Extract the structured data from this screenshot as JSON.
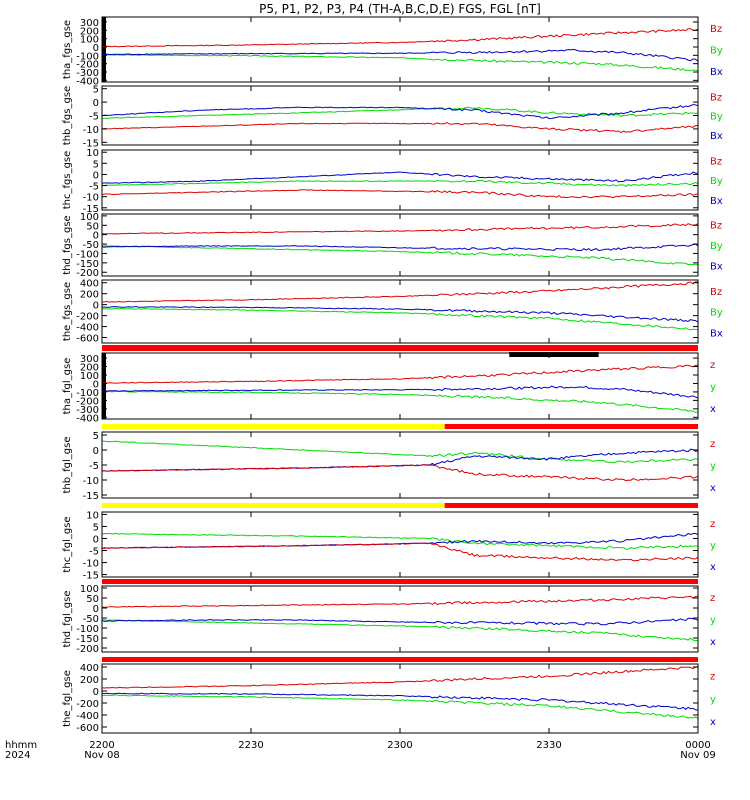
{
  "chart_data": {
    "type": "line",
    "title": "P5, P1, P2, P3, P4 (TH-A,B,C,D,E) FGS, FGL [nT]",
    "x_axis": {
      "label_row1": "hhmm",
      "label_row2": "2024",
      "ticks": [
        {
          "t": "2200",
          "d": "Nov 08"
        },
        {
          "t": "2230",
          "d": ""
        },
        {
          "t": "2300",
          "d": ""
        },
        {
          "t": "2330",
          "d": ""
        },
        {
          "t": "0000",
          "d": "Nov 09"
        }
      ],
      "range_minutes": [
        0,
        120
      ]
    },
    "panels": [
      {
        "ylabel": "tha_fgs_gse",
        "ylim": [
          -420,
          360
        ],
        "yticks": [
          "300",
          "200",
          "100",
          "0",
          "-100",
          "-200",
          "-300",
          "-400"
        ],
        "yvals": [
          300,
          200,
          100,
          0,
          -100,
          -200,
          -300,
          -400
        ],
        "legend": [
          "Bz",
          "By",
          "Bx"
        ],
        "series": {
          "x": [
            [
              0,
              -90
            ],
            [
              10,
              -85
            ],
            [
              30,
              -80
            ],
            [
              60,
              -75
            ],
            [
              80,
              -60
            ],
            [
              95,
              -40
            ],
            [
              105,
              -70
            ],
            [
              120,
              -160
            ]
          ],
          "y": [
            [
              0,
              -95
            ],
            [
              30,
              -105
            ],
            [
              60,
              -130
            ],
            [
              80,
              -170
            ],
            [
              100,
              -200
            ],
            [
              120,
              -280
            ]
          ],
          "z": [
            [
              0,
              5
            ],
            [
              30,
              25
            ],
            [
              60,
              55
            ],
            [
              80,
              100
            ],
            [
              100,
              160
            ],
            [
              120,
              210
            ]
          ]
        }
      },
      {
        "ylabel": "thb_fgs_gse",
        "ylim": [
          -16,
          6
        ],
        "yticks": [
          "5",
          "0",
          "-5",
          "-10",
          "-15"
        ],
        "yvals": [
          5,
          0,
          -5,
          -10,
          -15
        ],
        "legend": [
          "Bz",
          "By",
          "Bx"
        ],
        "series": {
          "x": [
            [
              0,
              -5
            ],
            [
              20,
              -3
            ],
            [
              40,
              -2
            ],
            [
              60,
              -2
            ],
            [
              75,
              -3
            ],
            [
              90,
              -6
            ],
            [
              105,
              -4
            ],
            [
              120,
              -1
            ]
          ],
          "y": [
            [
              0,
              -6
            ],
            [
              20,
              -5
            ],
            [
              40,
              -4
            ],
            [
              75,
              -2
            ],
            [
              90,
              -4
            ],
            [
              105,
              -5
            ],
            [
              120,
              -4
            ]
          ],
          "z": [
            [
              0,
              -10
            ],
            [
              20,
              -9
            ],
            [
              40,
              -8
            ],
            [
              75,
              -8
            ],
            [
              90,
              -10
            ],
            [
              105,
              -11
            ],
            [
              120,
              -9
            ]
          ]
        }
      },
      {
        "ylabel": "thc_fgs_gse",
        "ylim": [
          -16,
          11
        ],
        "yticks": [
          "10",
          "5",
          "0",
          "-5",
          "-10",
          "-15"
        ],
        "yvals": [
          10,
          5,
          0,
          -5,
          -10,
          -15
        ],
        "legend": [
          "Bz",
          "By",
          "Bx"
        ],
        "series": {
          "x": [
            [
              0,
              -4
            ],
            [
              20,
              -3
            ],
            [
              40,
              -1
            ],
            [
              60,
              1
            ],
            [
              75,
              -1
            ],
            [
              90,
              -2
            ],
            [
              105,
              -3
            ],
            [
              120,
              1
            ]
          ],
          "y": [
            [
              0,
              -5
            ],
            [
              20,
              -4
            ],
            [
              40,
              -3
            ],
            [
              75,
              -3
            ],
            [
              90,
              -4
            ],
            [
              105,
              -5
            ],
            [
              120,
              -4
            ]
          ],
          "z": [
            [
              0,
              -9
            ],
            [
              20,
              -8
            ],
            [
              40,
              -7
            ],
            [
              75,
              -8
            ],
            [
              90,
              -10
            ],
            [
              105,
              -10
            ],
            [
              120,
              -9
            ]
          ]
        }
      },
      {
        "ylabel": "thd_fgs_gse",
        "ylim": [
          -220,
          110
        ],
        "yticks": [
          "100",
          "50",
          "0",
          "-50",
          "-100",
          "-150",
          "-200"
        ],
        "yvals": [
          100,
          50,
          0,
          -50,
          -100,
          -150,
          -200
        ],
        "legend": [
          "Bz",
          "By",
          "Bx"
        ],
        "series": {
          "x": [
            [
              0,
              -65
            ],
            [
              20,
              -60
            ],
            [
              40,
              -60
            ],
            [
              60,
              -70
            ],
            [
              80,
              -75
            ],
            [
              100,
              -80
            ],
            [
              120,
              -55
            ]
          ],
          "y": [
            [
              0,
              -60
            ],
            [
              20,
              -70
            ],
            [
              40,
              -80
            ],
            [
              60,
              -90
            ],
            [
              80,
              -105
            ],
            [
              100,
              -125
            ],
            [
              120,
              -160
            ]
          ],
          "z": [
            [
              0,
              5
            ],
            [
              20,
              10
            ],
            [
              40,
              15
            ],
            [
              60,
              20
            ],
            [
              80,
              30
            ],
            [
              100,
              40
            ],
            [
              120,
              55
            ]
          ]
        }
      },
      {
        "ylabel": "the_fgs_gse",
        "ylim": [
          -700,
          450
        ],
        "yticks": [
          "400",
          "200",
          "0",
          "-200",
          "-400",
          "-600"
        ],
        "yvals": [
          400,
          200,
          0,
          -200,
          -400,
          -600
        ],
        "legend": [
          "Bz",
          "By",
          "Bx"
        ],
        "series": {
          "x": [
            [
              0,
              -40
            ],
            [
              30,
              -50
            ],
            [
              60,
              -80
            ],
            [
              90,
              -150
            ],
            [
              120,
              -300
            ]
          ],
          "y": [
            [
              0,
              -70
            ],
            [
              30,
              -100
            ],
            [
              60,
              -150
            ],
            [
              90,
              -250
            ],
            [
              120,
              -450
            ]
          ],
          "z": [
            [
              0,
              50
            ],
            [
              30,
              90
            ],
            [
              60,
              150
            ],
            [
              90,
              250
            ],
            [
              120,
              400
            ]
          ]
        }
      },
      {
        "ylabel": "tha_fgl_gse",
        "ylim": [
          -420,
          360
        ],
        "yticks": [
          "300",
          "200",
          "100",
          "0",
          "-100",
          "-200",
          "-300",
          "-400"
        ],
        "yvals": [
          300,
          200,
          100,
          0,
          -100,
          -200,
          -300,
          -400
        ],
        "legend": [
          "z",
          "y",
          "x"
        ],
        "series": {
          "x": [
            [
              0,
              -90
            ],
            [
              30,
              -80
            ],
            [
              60,
              -75
            ],
            [
              80,
              -60
            ],
            [
              95,
              -40
            ],
            [
              105,
              -70
            ],
            [
              120,
              -160
            ]
          ],
          "y": [
            [
              0,
              -95
            ],
            [
              30,
              -105
            ],
            [
              60,
              -130
            ],
            [
              80,
              -170
            ],
            [
              100,
              -220
            ],
            [
              120,
              -330
            ]
          ],
          "z": [
            [
              0,
              5
            ],
            [
              30,
              25
            ],
            [
              60,
              55
            ],
            [
              80,
              100
            ],
            [
              100,
              160
            ],
            [
              120,
              210
            ]
          ]
        }
      },
      {
        "ylabel": "thb_fgl_gse",
        "ylim": [
          -16,
          6
        ],
        "yticks": [
          "5",
          "0",
          "-5",
          "-10",
          "-15"
        ],
        "yvals": [
          5,
          0,
          -5,
          -10,
          -15
        ],
        "legend": [
          "z",
          "y",
          "x"
        ],
        "series": {
          "x": [
            [
              0,
              -7
            ],
            [
              40,
              -6
            ],
            [
              66,
              -5
            ],
            [
              75,
              -2
            ],
            [
              90,
              -3
            ],
            [
              105,
              -1
            ],
            [
              120,
              0
            ]
          ],
          "y": [
            [
              0,
              3
            ],
            [
              40,
              0
            ],
            [
              66,
              -2
            ],
            [
              75,
              -1
            ],
            [
              90,
              -3
            ],
            [
              105,
              -4
            ],
            [
              120,
              -3
            ]
          ],
          "z": [
            [
              0,
              -7
            ],
            [
              40,
              -6
            ],
            [
              66,
              -5
            ],
            [
              75,
              -8
            ],
            [
              90,
              -9
            ],
            [
              105,
              -10
            ],
            [
              120,
              -9
            ]
          ]
        }
      },
      {
        "ylabel": "thc_fgl_gse",
        "ylim": [
          -16,
          11
        ],
        "yticks": [
          "10",
          "5",
          "0",
          "-5",
          "-10",
          "-15"
        ],
        "yvals": [
          10,
          5,
          0,
          -5,
          -10,
          -15
        ],
        "legend": [
          "z",
          "y",
          "x"
        ],
        "series": {
          "x": [
            [
              0,
              -4
            ],
            [
              40,
              -3
            ],
            [
              66,
              -2
            ],
            [
              75,
              -1
            ],
            [
              90,
              -2
            ],
            [
              105,
              -1
            ],
            [
              120,
              2
            ]
          ],
          "y": [
            [
              0,
              2
            ],
            [
              40,
              1
            ],
            [
              66,
              0
            ],
            [
              75,
              -2
            ],
            [
              90,
              -3
            ],
            [
              105,
              -4
            ],
            [
              120,
              -3
            ]
          ],
          "z": [
            [
              0,
              -4
            ],
            [
              40,
              -3
            ],
            [
              66,
              -2
            ],
            [
              75,
              -7
            ],
            [
              90,
              -8
            ],
            [
              105,
              -9
            ],
            [
              120,
              -8
            ]
          ]
        }
      },
      {
        "ylabel": "thd_fgl_gse",
        "ylim": [
          -220,
          110
        ],
        "yticks": [
          "100",
          "50",
          "0",
          "-50",
          "-100",
          "-150",
          "-200"
        ],
        "yvals": [
          100,
          50,
          0,
          -50,
          -100,
          -150,
          -200
        ],
        "legend": [
          "z",
          "y",
          "x"
        ],
        "series": {
          "x": [
            [
              0,
              -65
            ],
            [
              20,
              -60
            ],
            [
              40,
              -60
            ],
            [
              60,
              -70
            ],
            [
              80,
              -75
            ],
            [
              100,
              -80
            ],
            [
              120,
              -55
            ]
          ],
          "y": [
            [
              0,
              -60
            ],
            [
              20,
              -70
            ],
            [
              40,
              -80
            ],
            [
              60,
              -90
            ],
            [
              80,
              -105
            ],
            [
              100,
              -125
            ],
            [
              120,
              -160
            ]
          ],
          "z": [
            [
              0,
              5
            ],
            [
              20,
              10
            ],
            [
              40,
              15
            ],
            [
              60,
              20
            ],
            [
              80,
              30
            ],
            [
              100,
              40
            ],
            [
              120,
              55
            ]
          ]
        }
      },
      {
        "ylabel": "the_fgl_gse",
        "ylim": [
          -700,
          450
        ],
        "yticks": [
          "400",
          "200",
          "0",
          "-200",
          "-400",
          "-600"
        ],
        "yvals": [
          400,
          200,
          0,
          -200,
          -400,
          -600
        ],
        "legend": [
          "z",
          "y",
          "x"
        ],
        "series": {
          "x": [
            [
              0,
              -40
            ],
            [
              30,
              -50
            ],
            [
              60,
              -80
            ],
            [
              90,
              -150
            ],
            [
              120,
              -300
            ]
          ],
          "y": [
            [
              0,
              -70
            ],
            [
              30,
              -100
            ],
            [
              60,
              -150
            ],
            [
              90,
              -250
            ],
            [
              120,
              -450
            ]
          ],
          "z": [
            [
              0,
              50
            ],
            [
              30,
              90
            ],
            [
              60,
              150
            ],
            [
              90,
              250
            ],
            [
              120,
              400
            ]
          ]
        }
      }
    ],
    "colors": {
      "x": "#0000cc",
      "y": "#00dd00",
      "z": "#dd0000",
      "red_bar": "#ff0000",
      "yellow_bar": "#ffff00",
      "black_bar": "#000000"
    }
  }
}
